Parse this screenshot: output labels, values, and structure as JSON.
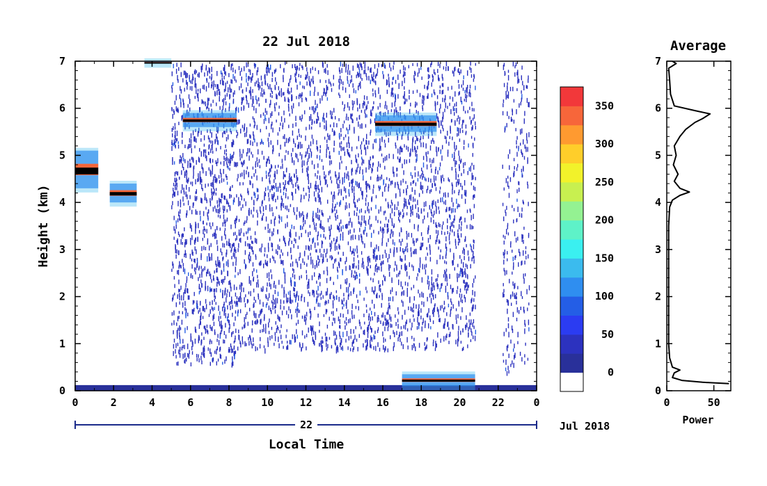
{
  "chart_data": [
    {
      "type": "heatmap",
      "title": "22 Jul 2018",
      "xlabel": "Local Time",
      "ylabel": "Height (km)",
      "x_ticks": [
        "0",
        "2",
        "4",
        "6",
        "8",
        "10",
        "12",
        "14",
        "16",
        "18",
        "20",
        "22",
        "0"
      ],
      "y_ticks": [
        "0",
        "1",
        "2",
        "3",
        "4",
        "5",
        "6",
        "7"
      ],
      "xlim": [
        0,
        24
      ],
      "ylim": [
        0,
        7
      ],
      "date_axis": {
        "day_label": "22",
        "month_label": "Jul 2018"
      },
      "colorbar": {
        "tick_labels": [
          "0",
          "50",
          "100",
          "150",
          "200",
          "250",
          "300",
          "350"
        ],
        "range": [
          -25,
          375
        ],
        "colors": [
          "#ffffff",
          "#29309a",
          "#2c32bf",
          "#2b3cf2",
          "#245ee6",
          "#2f8ef0",
          "#3bbbee",
          "#3af0f0",
          "#5ef2c8",
          "#94f292",
          "#c8f050",
          "#f2f22a",
          "#ffce2a",
          "#ff9a30",
          "#f7663a",
          "#f2383a"
        ]
      },
      "features": [
        {
          "kind": "cloud_layer",
          "t_start": 0.0,
          "t_end": 1.2,
          "h_start": 4.3,
          "h_end": 5.1
        },
        {
          "kind": "cloud_layer",
          "t_start": 1.8,
          "t_end": 3.2,
          "h_start": 4.0,
          "h_end": 4.4
        },
        {
          "kind": "cloud_layer",
          "t_start": 3.6,
          "t_end": 5.0,
          "h_start": 6.95,
          "h_end": 7.0
        },
        {
          "kind": "cloud_layer",
          "t_start": 5.6,
          "t_end": 8.4,
          "h_start": 5.6,
          "h_end": 5.9
        },
        {
          "kind": "cloud_layer",
          "t_start": 15.6,
          "t_end": 18.8,
          "h_start": 5.5,
          "h_end": 5.85
        },
        {
          "kind": "boundary_layer",
          "t_start": 17.0,
          "t_end": 20.8,
          "h_start": 0.1,
          "h_end": 0.35
        }
      ]
    },
    {
      "type": "line",
      "title": "Average",
      "xlabel": "Power",
      "x_ticks": [
        "0",
        "50"
      ],
      "y_ticks": [
        "0",
        "1",
        "2",
        "3",
        "4",
        "5",
        "6",
        "7"
      ],
      "xlim": [
        0,
        68
      ],
      "ylim": [
        0,
        7
      ],
      "series": [
        {
          "points": [
            [
              66,
              0.15
            ],
            [
              38,
              0.18
            ],
            [
              16,
              0.22
            ],
            [
              6,
              0.28
            ],
            [
              8,
              0.38
            ],
            [
              14,
              0.44
            ],
            [
              6,
              0.5
            ],
            [
              3,
              0.7
            ],
            [
              2,
              1.0
            ],
            [
              2,
              1.5
            ],
            [
              2,
              2.0
            ],
            [
              2,
              2.5
            ],
            [
              2,
              3.0
            ],
            [
              2,
              3.5
            ],
            [
              3,
              3.9
            ],
            [
              6,
              4.05
            ],
            [
              14,
              4.15
            ],
            [
              24,
              4.22
            ],
            [
              14,
              4.3
            ],
            [
              8,
              4.45
            ],
            [
              12,
              4.6
            ],
            [
              7,
              4.8
            ],
            [
              10,
              5.0
            ],
            [
              8,
              5.2
            ],
            [
              14,
              5.4
            ],
            [
              20,
              5.55
            ],
            [
              30,
              5.7
            ],
            [
              38,
              5.78
            ],
            [
              46,
              5.88
            ],
            [
              30,
              5.95
            ],
            [
              8,
              6.05
            ],
            [
              4,
              6.3
            ],
            [
              3,
              6.6
            ],
            [
              2,
              6.85
            ],
            [
              10,
              6.95
            ],
            [
              6,
              7.0
            ]
          ]
        }
      ]
    }
  ]
}
